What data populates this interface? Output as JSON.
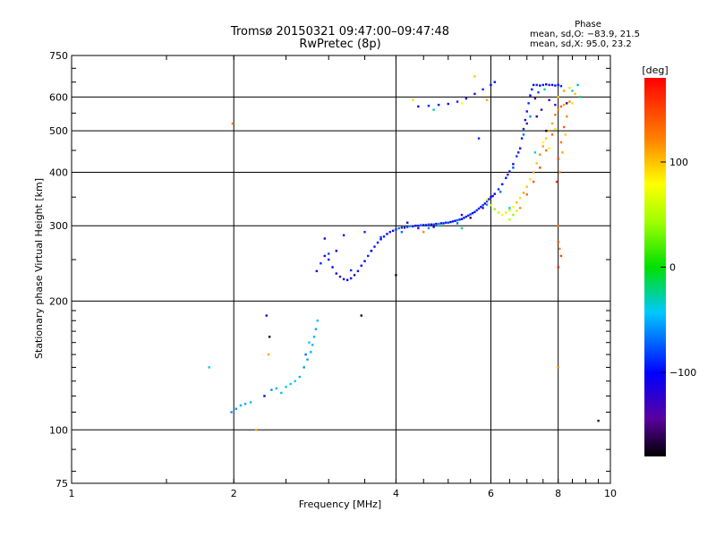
{
  "header": {
    "title_line1": "Tromsø 20150321 09:47:00–09:47:48",
    "title_line2": "RwPretec (8p)"
  },
  "phase_info": {
    "heading": "Phase",
    "line1": "mean, sd,O:  −83.9,  21.5",
    "line2": "mean, sd,X:   95.0,  23.2"
  },
  "chart_data": {
    "type": "scatter",
    "title": "Tromsø 20150321 09:47:00–09:47:48 RwPretec (8p)",
    "xlabel": "Frequency [MHz]",
    "ylabel": "Stationary phase Virtual Height [km]",
    "xscale": "log",
    "yscale": "log",
    "xlim": [
      1,
      10
    ],
    "ylim": [
      75,
      750
    ],
    "grid": true,
    "x_ticks": [
      1,
      2,
      4,
      6,
      8,
      10
    ],
    "x_tick_labels": [
      "1",
      "2",
      "4",
      "6",
      "8",
      "10"
    ],
    "y_ticks": [
      75,
      100,
      200,
      300,
      400,
      500,
      600,
      750
    ],
    "y_tick_labels": [
      "75",
      "100",
      "200",
      "300",
      "400",
      "500",
      "600",
      "750"
    ],
    "colorbar": {
      "label": "[deg]",
      "range": [
        -180,
        180
      ],
      "ticks": [
        -100,
        0,
        100
      ],
      "tick_labels": [
        "−100",
        "0",
        "100"
      ]
    },
    "points": [
      [
        1.8,
        140,
        -40
      ],
      [
        1.98,
        110,
        -60
      ],
      [
        2.02,
        112,
        -55
      ],
      [
        2.06,
        114,
        -50
      ],
      [
        2.1,
        115,
        -52
      ],
      [
        2.15,
        116,
        -48
      ],
      [
        2.28,
        120,
        -100
      ],
      [
        2.35,
        124,
        -60
      ],
      [
        2.4,
        125,
        -50
      ],
      [
        2.45,
        122,
        -45
      ],
      [
        2.5,
        126,
        -40
      ],
      [
        2.55,
        128,
        -42
      ],
      [
        2.6,
        130,
        -45
      ],
      [
        2.65,
        133,
        -50
      ],
      [
        2.7,
        140,
        -60
      ],
      [
        2.74,
        146,
        -55
      ],
      [
        2.78,
        152,
        -50
      ],
      [
        2.8,
        158,
        -48
      ],
      [
        2.82,
        165,
        -52
      ],
      [
        2.84,
        172,
        -55
      ],
      [
        2.86,
        180,
        -45
      ],
      [
        2.72,
        150,
        -70
      ],
      [
        2.76,
        160,
        -40
      ],
      [
        2.3,
        185,
        -110
      ],
      [
        2.33,
        165,
        -170
      ],
      [
        2.32,
        150,
        110
      ],
      [
        2.2,
        100,
        110
      ],
      [
        1.99,
        520,
        130
      ],
      [
        2.85,
        235,
        -100
      ],
      [
        2.9,
        245,
        -90
      ],
      [
        2.95,
        255,
        -110
      ],
      [
        3.0,
        250,
        -95
      ],
      [
        3.05,
        240,
        -100
      ],
      [
        3.1,
        232,
        -105
      ],
      [
        3.15,
        228,
        -120
      ],
      [
        3.2,
        225,
        -110
      ],
      [
        3.25,
        224,
        -100
      ],
      [
        3.3,
        226,
        -105
      ],
      [
        3.35,
        230,
        -110
      ],
      [
        3.4,
        235,
        -95
      ],
      [
        3.45,
        242,
        -100
      ],
      [
        3.5,
        248,
        -105
      ],
      [
        3.55,
        255,
        -90
      ],
      [
        3.6,
        262,
        -100
      ],
      [
        3.65,
        268,
        -95
      ],
      [
        3.7,
        274,
        -110
      ],
      [
        3.75,
        279,
        -100
      ],
      [
        3.8,
        283,
        -90
      ],
      [
        3.85,
        287,
        -105
      ],
      [
        3.9,
        290,
        -95
      ],
      [
        3.95,
        292,
        -100
      ],
      [
        4.0,
        294,
        -85
      ],
      [
        4.05,
        296,
        -70
      ],
      [
        4.1,
        297,
        -90
      ],
      [
        4.15,
        297,
        -100
      ],
      [
        4.2,
        298,
        -80
      ],
      [
        4.25,
        299,
        -60
      ],
      [
        4.3,
        299,
        -95
      ],
      [
        4.35,
        300,
        -100
      ],
      [
        4.4,
        300,
        -90
      ],
      [
        4.45,
        301,
        -70
      ],
      [
        4.5,
        301,
        -100
      ],
      [
        4.55,
        301,
        -95
      ],
      [
        4.6,
        302,
        -80
      ],
      [
        4.65,
        302,
        -100
      ],
      [
        4.7,
        302,
        -90
      ],
      [
        4.75,
        303,
        -105
      ],
      [
        4.8,
        303,
        -60
      ],
      [
        4.85,
        304,
        -95
      ],
      [
        4.9,
        304,
        -100
      ],
      [
        4.95,
        305,
        -90
      ],
      [
        5.0,
        305,
        -80
      ],
      [
        5.05,
        306,
        -100
      ],
      [
        5.1,
        307,
        -95
      ],
      [
        5.15,
        308,
        -100
      ],
      [
        5.2,
        309,
        -70
      ],
      [
        5.25,
        310,
        -90
      ],
      [
        5.3,
        311,
        -100
      ],
      [
        5.35,
        313,
        -95
      ],
      [
        5.4,
        315,
        -100
      ],
      [
        5.45,
        317,
        -90
      ],
      [
        5.5,
        319,
        -80
      ],
      [
        5.55,
        321,
        -100
      ],
      [
        5.6,
        323,
        -95
      ],
      [
        5.65,
        326,
        -90
      ],
      [
        5.7,
        329,
        -100
      ],
      [
        5.75,
        332,
        -95
      ],
      [
        5.8,
        335,
        -85
      ],
      [
        5.85,
        338,
        -100
      ],
      [
        5.9,
        342,
        -90
      ],
      [
        5.95,
        346,
        -100
      ],
      [
        6.0,
        350,
        -95
      ],
      [
        6.1,
        356,
        -100
      ],
      [
        6.2,
        365,
        -90
      ],
      [
        6.3,
        375,
        -100
      ],
      [
        6.4,
        388,
        -95
      ],
      [
        6.5,
        402,
        -90
      ],
      [
        6.6,
        418,
        -100
      ],
      [
        6.7,
        436,
        -85
      ],
      [
        6.8,
        455,
        -100
      ],
      [
        6.85,
        480,
        -95
      ],
      [
        6.9,
        505,
        -90
      ],
      [
        6.95,
        530,
        -100
      ],
      [
        7.0,
        555,
        -95
      ],
      [
        7.05,
        580,
        -90
      ],
      [
        7.1,
        605,
        -100
      ],
      [
        7.15,
        625,
        -95
      ],
      [
        7.2,
        640,
        -100
      ],
      [
        7.3,
        640,
        -90
      ],
      [
        7.4,
        638,
        -100
      ],
      [
        7.5,
        640,
        -95
      ],
      [
        7.6,
        642,
        -100
      ],
      [
        7.7,
        640,
        -90
      ],
      [
        7.8,
        640,
        -100
      ],
      [
        7.9,
        638,
        -95
      ],
      [
        8.0,
        640,
        -100
      ],
      [
        8.1,
        636,
        -90
      ],
      [
        3.2,
        285,
        -100
      ],
      [
        3.6,
        262,
        -110
      ],
      [
        4.2,
        305,
        -120
      ],
      [
        4.4,
        296,
        -140
      ],
      [
        4.7,
        298,
        -130
      ],
      [
        5.3,
        318,
        -120
      ],
      [
        5.5,
        313,
        -160
      ],
      [
        5.8,
        330,
        -140
      ],
      [
        6.05,
        352,
        -120
      ],
      [
        6.45,
        395,
        -140
      ],
      [
        6.75,
        445,
        -130
      ],
      [
        7.0,
        520,
        -140
      ],
      [
        7.25,
        595,
        -150
      ],
      [
        7.45,
        560,
        -130
      ],
      [
        7.7,
        590,
        -120
      ],
      [
        7.9,
        575,
        -140
      ],
      [
        3.0,
        258,
        -80
      ],
      [
        3.3,
        236,
        -90
      ],
      [
        3.75,
        282,
        -80
      ],
      [
        4.1,
        290,
        -70
      ],
      [
        4.6,
        296,
        -60
      ],
      [
        5.2,
        304,
        -70
      ],
      [
        5.9,
        336,
        -60
      ],
      [
        6.25,
        360,
        -70
      ],
      [
        6.6,
        410,
        -80
      ],
      [
        6.9,
        490,
        -70
      ],
      [
        7.1,
        540,
        -60
      ],
      [
        7.35,
        615,
        -80
      ],
      [
        5.9,
        345,
        70
      ],
      [
        6.0,
        335,
        60
      ],
      [
        6.1,
        328,
        40
      ],
      [
        6.2,
        322,
        50
      ],
      [
        6.3,
        318,
        80
      ],
      [
        6.4,
        322,
        90
      ],
      [
        6.5,
        326,
        60
      ],
      [
        6.6,
        332,
        80
      ],
      [
        6.7,
        340,
        100
      ],
      [
        6.8,
        348,
        90
      ],
      [
        6.9,
        358,
        110
      ],
      [
        7.0,
        370,
        100
      ],
      [
        7.1,
        385,
        90
      ],
      [
        7.2,
        400,
        110
      ],
      [
        7.3,
        420,
        100
      ],
      [
        7.4,
        440,
        120
      ],
      [
        7.5,
        460,
        110
      ],
      [
        7.6,
        480,
        100
      ],
      [
        7.7,
        500,
        120
      ],
      [
        7.8,
        520,
        110
      ],
      [
        7.9,
        545,
        130
      ],
      [
        8.0,
        560,
        120
      ],
      [
        8.1,
        570,
        140
      ],
      [
        8.2,
        575,
        110
      ],
      [
        8.3,
        580,
        100
      ],
      [
        8.4,
        585,
        120
      ],
      [
        8.5,
        580,
        90
      ],
      [
        6.8,
        330,
        120
      ],
      [
        7.0,
        355,
        130
      ],
      [
        7.2,
        380,
        140
      ],
      [
        7.4,
        410,
        150
      ],
      [
        7.6,
        450,
        130
      ],
      [
        7.8,
        490,
        140
      ],
      [
        8.0,
        430,
        150
      ],
      [
        8.1,
        470,
        130
      ],
      [
        8.2,
        510,
        140
      ],
      [
        8.3,
        540,
        120
      ],
      [
        8.0,
        600,
        100
      ],
      [
        8.2,
        620,
        110
      ],
      [
        8.4,
        630,
        90
      ],
      [
        8.6,
        610,
        100
      ],
      [
        7.95,
        380,
        160
      ],
      [
        8.05,
        400,
        120
      ],
      [
        8.15,
        445,
        110
      ],
      [
        8.25,
        490,
        95
      ],
      [
        6.5,
        310,
        50
      ],
      [
        6.6,
        318,
        40
      ],
      [
        6.7,
        325,
        60
      ],
      [
        7.5,
        470,
        80
      ],
      [
        7.7,
        455,
        70
      ],
      [
        7.9,
        505,
        60
      ],
      [
        8.0,
        300,
        130
      ],
      [
        8.0,
        275,
        140
      ],
      [
        8.05,
        265,
        120
      ],
      [
        8.1,
        255,
        150
      ],
      [
        8.0,
        240,
        165
      ],
      [
        8.0,
        140,
        120
      ],
      [
        4.5,
        290,
        120
      ],
      [
        4.3,
        590,
        90
      ],
      [
        4.4,
        570,
        -100
      ],
      [
        4.6,
        572,
        -90
      ],
      [
        4.8,
        575,
        -95
      ],
      [
        5.0,
        578,
        -100
      ],
      [
        5.2,
        585,
        -90
      ],
      [
        5.4,
        595,
        -100
      ],
      [
        5.6,
        610,
        -95
      ],
      [
        5.8,
        625,
        -90
      ],
      [
        6.0,
        640,
        -100
      ],
      [
        6.1,
        650,
        -95
      ],
      [
        5.6,
        670,
        100
      ],
      [
        5.9,
        590,
        110
      ],
      [
        5.3,
        580,
        80
      ],
      [
        4.7,
        560,
        -30
      ],
      [
        5.7,
        480,
        -90
      ],
      [
        9.5,
        105,
        -160
      ],
      [
        3.45,
        185,
        -170
      ],
      [
        4.0,
        230,
        -170
      ],
      [
        7.6,
        500,
        -170
      ],
      [
        7.3,
        540,
        -160
      ],
      [
        8.3,
        580,
        -150
      ],
      [
        2.95,
        280,
        -120
      ],
      [
        3.1,
        262,
        -100
      ],
      [
        3.5,
        290,
        -90
      ],
      [
        4.8,
        300,
        -30
      ],
      [
        5.3,
        296,
        -20
      ],
      [
        6.5,
        330,
        -40
      ],
      [
        7.25,
        445,
        -40
      ],
      [
        7.55,
        625,
        -30
      ],
      [
        8.5,
        620,
        -40
      ],
      [
        8.7,
        640,
        -50
      ],
      [
        8.8,
        600,
        -20
      ]
    ]
  }
}
